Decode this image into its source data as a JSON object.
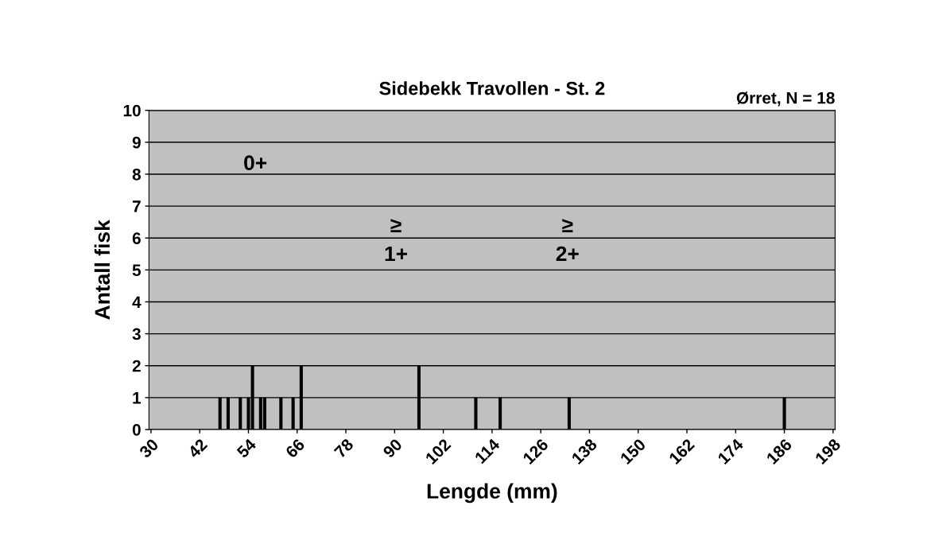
{
  "chart_data": {
    "type": "bar",
    "title": "Sidebekk Travollen - St. 2",
    "xlabel": "Lengde (mm)",
    "ylabel": "Antall fisk",
    "x": [
      47,
      49,
      52,
      54,
      55,
      57,
      58,
      62,
      65,
      67,
      96,
      110,
      116,
      133,
      186
    ],
    "values": [
      1,
      1,
      1,
      1,
      2,
      1,
      1,
      1,
      1,
      2,
      2,
      1,
      1,
      1,
      1
    ],
    "color": "#000000",
    "xlim": [
      29.5,
      198.5
    ],
    "xticks": [
      30,
      42,
      54,
      66,
      78,
      90,
      102,
      114,
      126,
      138,
      150,
      162,
      174,
      186,
      198
    ],
    "ylim": [
      0,
      10
    ],
    "yticks": [
      0,
      1,
      2,
      3,
      4,
      5,
      6,
      7,
      8,
      9,
      10
    ],
    "grid": "y",
    "annotations": [
      "Ørret, N = 18",
      "0+",
      "≥\n1+",
      "≥\n2+"
    ]
  }
}
